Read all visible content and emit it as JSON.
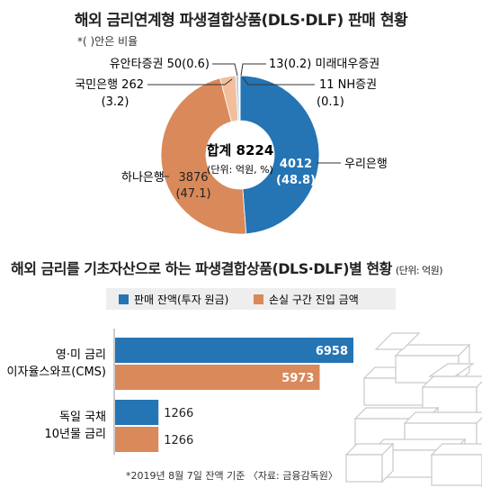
{
  "chart_data": [
    {
      "type": "pie",
      "title": "해외 금리연계형 파생결합상품(DLS·DLF) 판매 현황",
      "note": "*( )안은 비율",
      "center_label": {
        "total": "합계 8224",
        "unit": "(단위: 억원, %)"
      },
      "slices": [
        {
          "name": "우리은행",
          "value": 4012,
          "value_label": "4012",
          "pct_label": "(48.8)",
          "color": "#2574b4"
        },
        {
          "name": "하나은행",
          "value": 3876,
          "value_label": "3876",
          "pct_label": "(47.1)",
          "color": "#d9895a"
        },
        {
          "name": "국민은행",
          "value": 262,
          "value_label": "262",
          "pct_label": "(3.2)",
          "color": "#f2bf9a"
        },
        {
          "name": "유안타증권",
          "value": 50,
          "value_label": "50",
          "pct_label": "(0.6)",
          "color": "#bcd2e6"
        },
        {
          "name": "미래대우증권",
          "value": 13,
          "value_label": "13",
          "pct_label": "(0.2)",
          "color": "#8db3d6"
        },
        {
          "name": "NH증권",
          "value": 11,
          "value_label": "11",
          "pct_label": "(0.1)",
          "color": "#2a5f8e"
        }
      ]
    },
    {
      "type": "bar",
      "orientation": "horizontal",
      "title": "해외 금리를 기초자산으로 하는 파생결합상품(DLS·DLF)별 현황",
      "unit": "(단위: 억원)",
      "categories": [
        {
          "line1": "영·미 금리",
          "line2": "이자율스와프(CMS)"
        },
        {
          "line1": "독일 국채",
          "line2": "10년물 금리"
        }
      ],
      "series": [
        {
          "name": "판매 잔액(투자 원금)",
          "values": [
            6958,
            1266
          ],
          "color": "#2574b4"
        },
        {
          "name": "손실 구간 진입 금액",
          "values": [
            5973,
            1266
          ],
          "color": "#d9895a"
        }
      ],
      "xlim": [
        0,
        7300
      ]
    }
  ],
  "footnote": "*2019년 8월 7일 잔액 기준 〈자료: 금융감독원〉"
}
